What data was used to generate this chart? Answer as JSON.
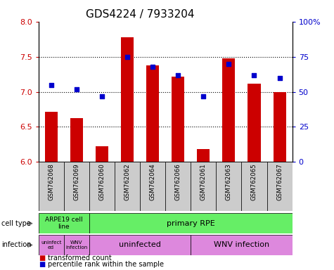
{
  "title": "GDS4224 / 7933204",
  "samples": [
    "GSM762068",
    "GSM762069",
    "GSM762060",
    "GSM762062",
    "GSM762064",
    "GSM762066",
    "GSM762061",
    "GSM762063",
    "GSM762065",
    "GSM762067"
  ],
  "transformed_count": [
    6.72,
    6.62,
    6.22,
    7.78,
    7.38,
    7.22,
    6.18,
    7.48,
    7.12,
    7.0
  ],
  "percentile_rank": [
    55,
    52,
    47,
    75,
    68,
    62,
    47,
    70,
    62,
    60
  ],
  "ylim_left": [
    6.0,
    8.0
  ],
  "ylim_right": [
    0,
    100
  ],
  "yticks_left": [
    6.0,
    6.5,
    7.0,
    7.5,
    8.0
  ],
  "yticks_right": [
    0,
    25,
    50,
    75,
    100
  ],
  "ytick_labels_right": [
    "0",
    "25",
    "50",
    "75",
    "100%"
  ],
  "bar_color": "#cc0000",
  "dot_color": "#0000cc",
  "bar_width": 0.5,
  "cell_type_label": "cell type",
  "infection_label": "infection",
  "legend_bar_label": "transformed count",
  "legend_dot_label": "percentile rank within the sample",
  "tick_label_color_left": "#cc0000",
  "tick_label_color_right": "#0000cc",
  "title_fontsize": 11,
  "tick_fontsize": 8,
  "bar_base": 6.0,
  "sample_bg_color": "#cccccc",
  "cell_type_color": "#66ee66",
  "infection_color_light": "#dd88dd",
  "infection_color_dark": "#cc44cc",
  "arrow_color": "#888888"
}
